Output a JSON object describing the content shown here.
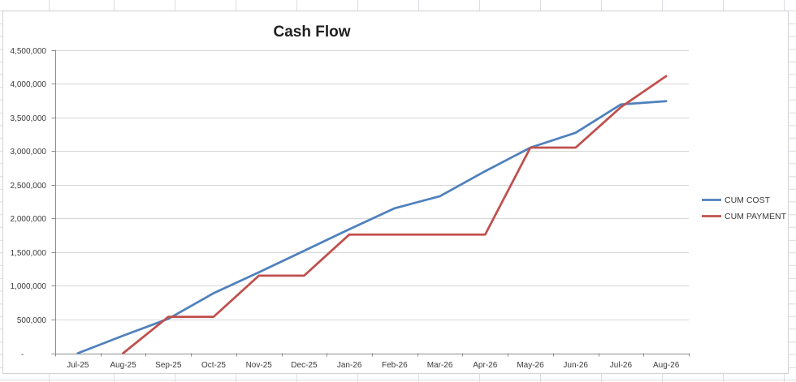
{
  "chart_data": {
    "type": "line",
    "title": "Cash Flow",
    "categories": [
      "Jul-25",
      "Aug-25",
      "Sep-25",
      "Oct-25",
      "Nov-25",
      "Dec-25",
      "Jan-26",
      "Feb-26",
      "Mar-26",
      "Apr-26",
      "May-26",
      "Jun-26",
      "Jul-26",
      "Aug-26"
    ],
    "series": [
      {
        "name": "CUM COST",
        "color": "#4F81BD",
        "values": [
          0,
          260000,
          510000,
          890000,
          1200000,
          1520000,
          1840000,
          2150000,
          2330000,
          2700000,
          3050000,
          3270000,
          3690000,
          3740000
        ]
      },
      {
        "name": "CUM PAYMENT",
        "color": "#C0504D",
        "values": [
          null,
          0,
          540000,
          540000,
          1150000,
          1150000,
          1760000,
          1760000,
          1760000,
          1760000,
          3050000,
          3050000,
          3650000,
          4110000
        ]
      }
    ],
    "y_axis": {
      "min": 0,
      "max": 4500000,
      "step": 500000,
      "tick_labels_top_down": [
        "4,500,000",
        "4,000,000",
        "3,500,000",
        "3,000,000",
        "2,500,000",
        "2,000,000",
        "1,500,000",
        "1,000,000",
        "500,000",
        "-"
      ]
    },
    "x_axis": {
      "tick_labels": [
        "Jul-25",
        "Aug-25",
        "Sep-25",
        "Oct-25",
        "Nov-25",
        "Dec-25",
        "Jan-26",
        "Feb-26",
        "Mar-26",
        "Apr-26",
        "May-26",
        "Jun-26",
        "Jul-26",
        "Aug-26"
      ]
    },
    "legend": {
      "position": "right"
    },
    "grid": true,
    "colors": {
      "gridline": "#d6d6d6",
      "axis": "#8c8c8c",
      "text": "#3b3b3b"
    }
  }
}
